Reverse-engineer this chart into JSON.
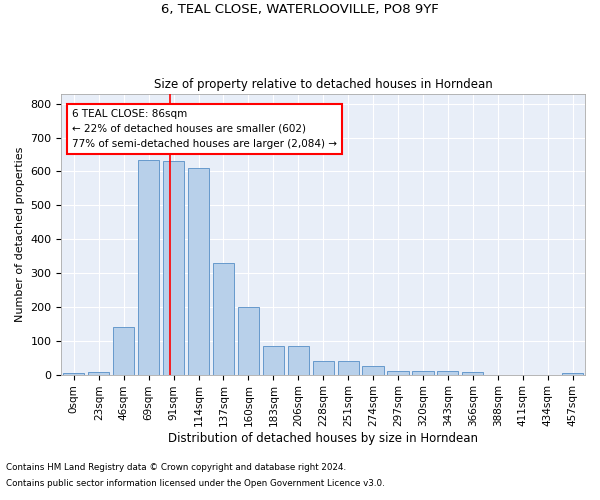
{
  "title1": "6, TEAL CLOSE, WATERLOOVILLE, PO8 9YF",
  "title2": "Size of property relative to detached houses in Horndean",
  "xlabel": "Distribution of detached houses by size in Horndean",
  "ylabel": "Number of detached properties",
  "bar_color": "#b8d0ea",
  "bar_edge_color": "#6699cc",
  "bg_color": "#e8eef8",
  "grid_color": "white",
  "categories": [
    "0sqm",
    "23sqm",
    "46sqm",
    "69sqm",
    "91sqm",
    "114sqm",
    "137sqm",
    "160sqm",
    "183sqm",
    "206sqm",
    "228sqm",
    "251sqm",
    "274sqm",
    "297sqm",
    "320sqm",
    "343sqm",
    "366sqm",
    "388sqm",
    "411sqm",
    "434sqm",
    "457sqm"
  ],
  "values": [
    5,
    8,
    140,
    635,
    630,
    610,
    330,
    200,
    85,
    85,
    40,
    40,
    25,
    10,
    12,
    12,
    8,
    0,
    0,
    0,
    5
  ],
  "vline_x": 3.85,
  "annotation_text": "6 TEAL CLOSE: 86sqm\n← 22% of detached houses are smaller (602)\n77% of semi-detached houses are larger (2,084) →",
  "annotation_box_color": "white",
  "annotation_border_color": "red",
  "vline_color": "red",
  "ylim": [
    0,
    830
  ],
  "yticks": [
    0,
    100,
    200,
    300,
    400,
    500,
    600,
    700,
    800
  ],
  "footnote1": "Contains HM Land Registry data © Crown copyright and database right 2024.",
  "footnote2": "Contains public sector information licensed under the Open Government Licence v3.0."
}
